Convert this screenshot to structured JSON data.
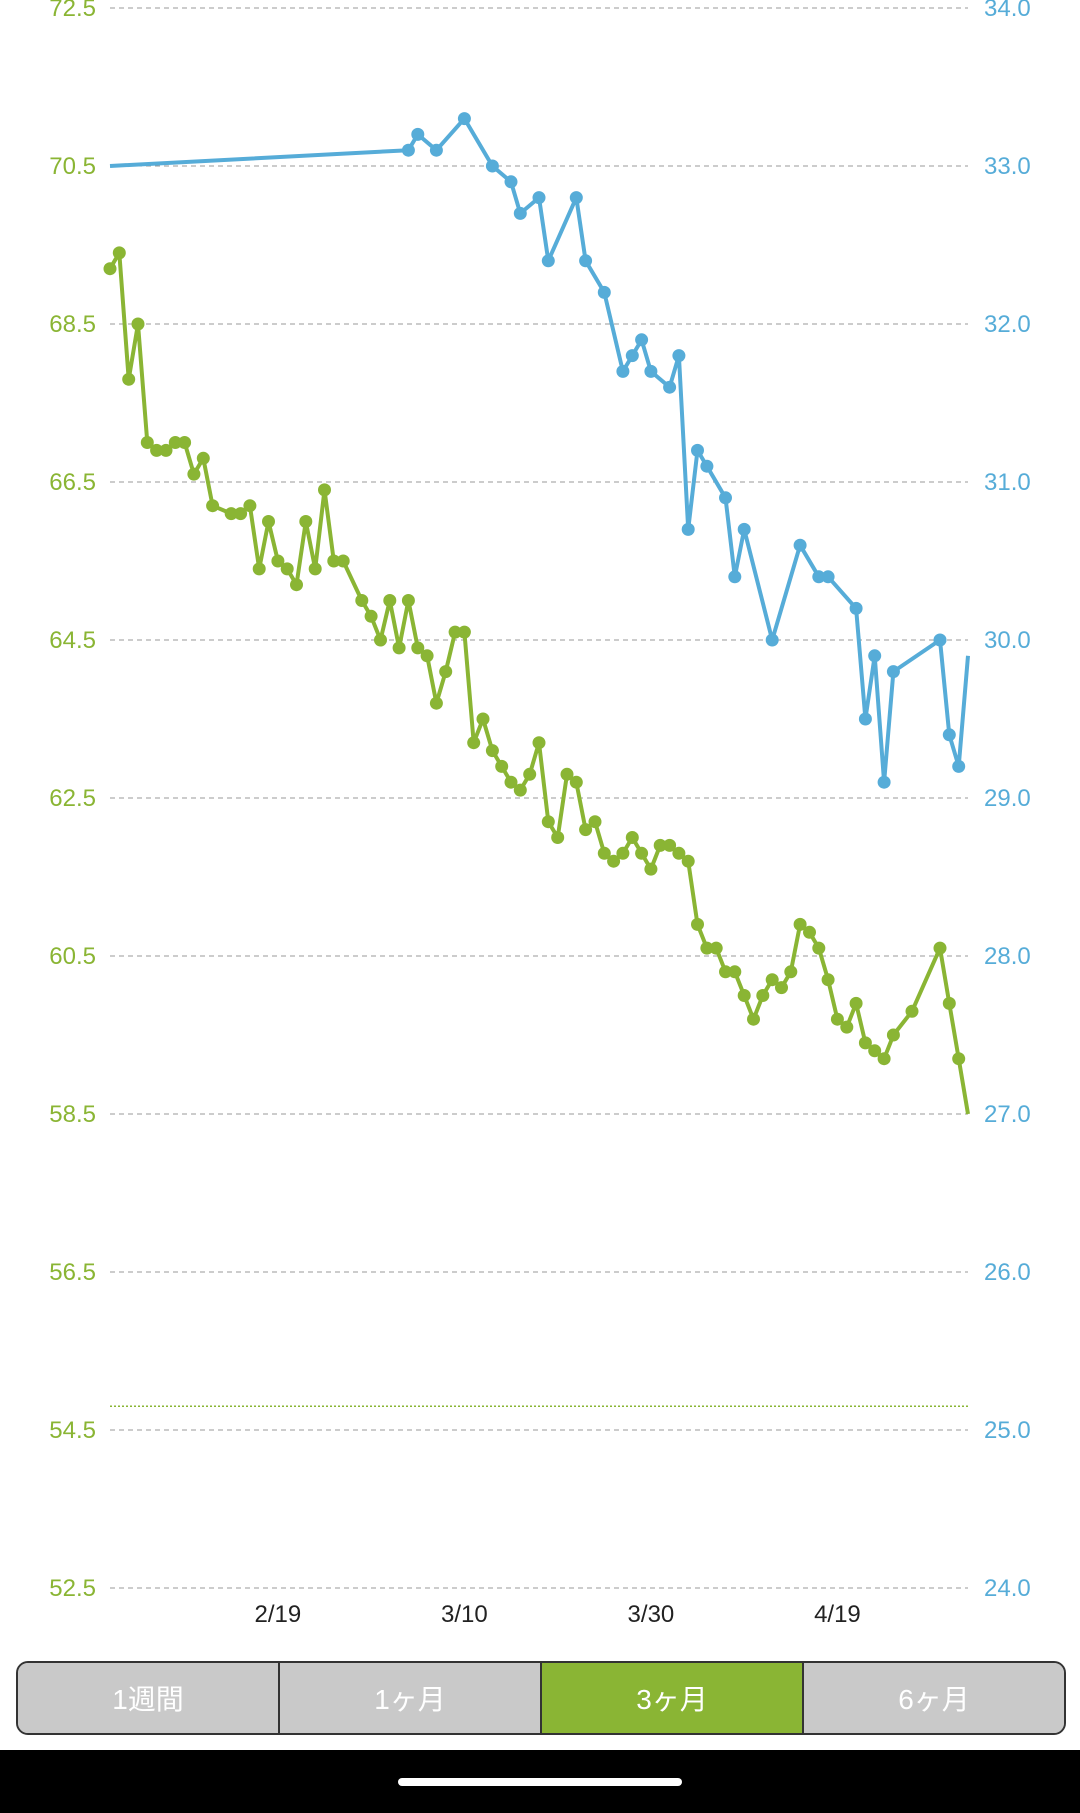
{
  "chart_data": {
    "type": "line",
    "title": "",
    "left_axis": {
      "ticks": [
        "72.5",
        "70.5",
        "68.5",
        "66.5",
        "64.5",
        "62.5",
        "60.5",
        "58.5",
        "56.5",
        "54.5",
        "52.5"
      ],
      "range": [
        52.5,
        72.5
      ],
      "color": "#8ab534"
    },
    "right_axis": {
      "ticks": [
        "34.0",
        "33.0",
        "32.0",
        "31.0",
        "30.0",
        "29.0",
        "28.0",
        "27.0",
        "26.0",
        "25.0",
        "24.0"
      ],
      "range": [
        24.0,
        34.0
      ],
      "color": "#56acd8"
    },
    "x_axis": {
      "ticks": [
        "2/19",
        "3/10",
        "3/30",
        "4/19"
      ],
      "tick_days": [
        27,
        47,
        67,
        87
      ]
    },
    "grid": true,
    "target_line": {
      "value": 54.8,
      "axis": "left",
      "color": "#8ab534"
    },
    "series": [
      {
        "axis": "left",
        "color": "#8ab534",
        "points": [
          [
            9,
            69.2
          ],
          [
            10,
            69.4
          ],
          [
            11,
            67.8
          ],
          [
            12,
            68.5
          ],
          [
            13,
            67.0
          ],
          [
            14,
            66.9
          ],
          [
            15,
            66.9
          ],
          [
            16,
            67.0
          ],
          [
            17,
            67.0
          ],
          [
            18,
            66.6
          ],
          [
            19,
            66.8
          ],
          [
            20,
            66.2
          ],
          [
            22,
            66.1
          ],
          [
            23,
            66.1
          ],
          [
            24,
            66.2
          ],
          [
            25,
            65.4
          ],
          [
            26,
            66.0
          ],
          [
            27,
            65.5
          ],
          [
            28,
            65.4
          ],
          [
            29,
            65.2
          ],
          [
            30,
            66.0
          ],
          [
            31,
            65.4
          ],
          [
            32,
            66.4
          ],
          [
            33,
            65.5
          ],
          [
            34,
            65.5
          ],
          [
            36,
            65.0
          ],
          [
            37,
            64.8
          ],
          [
            38,
            64.5
          ],
          [
            39,
            65.0
          ],
          [
            40,
            64.4
          ],
          [
            41,
            65.0
          ],
          [
            42,
            64.4
          ],
          [
            43,
            64.3
          ],
          [
            44,
            63.7
          ],
          [
            45,
            64.1
          ],
          [
            46,
            64.6
          ],
          [
            47,
            64.6
          ],
          [
            48,
            63.2
          ],
          [
            49,
            63.5
          ],
          [
            50,
            63.1
          ],
          [
            51,
            62.9
          ],
          [
            52,
            62.7
          ],
          [
            53,
            62.6
          ],
          [
            54,
            62.8
          ],
          [
            55,
            63.2
          ],
          [
            56,
            62.2
          ],
          [
            57,
            62.0
          ],
          [
            58,
            62.8
          ],
          [
            59,
            62.7
          ],
          [
            60,
            62.1
          ],
          [
            61,
            62.2
          ],
          [
            62,
            61.8
          ],
          [
            63,
            61.7
          ],
          [
            64,
            61.8
          ],
          [
            65,
            62.0
          ],
          [
            66,
            61.8
          ],
          [
            67,
            61.6
          ],
          [
            68,
            61.9
          ],
          [
            69,
            61.9
          ],
          [
            70,
            61.8
          ],
          [
            71,
            61.7
          ],
          [
            72,
            60.9
          ],
          [
            73,
            60.6
          ],
          [
            74,
            60.6
          ],
          [
            75,
            60.3
          ],
          [
            76,
            60.3
          ],
          [
            77,
            60.0
          ],
          [
            78,
            59.7
          ],
          [
            79,
            60.0
          ],
          [
            80,
            60.2
          ],
          [
            81,
            60.1
          ],
          [
            82,
            60.3
          ],
          [
            83,
            60.9
          ],
          [
            84,
            60.8
          ],
          [
            85,
            60.6
          ],
          [
            86,
            60.2
          ],
          [
            87,
            59.7
          ],
          [
            88,
            59.6
          ],
          [
            89,
            59.9
          ],
          [
            90,
            59.4
          ],
          [
            91,
            59.3
          ],
          [
            92,
            59.2
          ],
          [
            93,
            59.5
          ],
          [
            95,
            59.8
          ],
          [
            98,
            60.6
          ],
          [
            99,
            59.9
          ],
          [
            100,
            59.2
          ],
          [
            101,
            58.5
          ]
        ]
      },
      {
        "axis": "right",
        "color": "#56acd8",
        "points": [
          [
            9,
            33.0
          ],
          [
            41,
            33.1
          ],
          [
            42,
            33.2
          ],
          [
            44,
            33.1
          ],
          [
            47,
            33.3
          ],
          [
            50,
            33.0
          ],
          [
            52,
            32.9
          ],
          [
            53,
            32.7
          ],
          [
            55,
            32.8
          ],
          [
            56,
            32.4
          ],
          [
            59,
            32.8
          ],
          [
            60,
            32.4
          ],
          [
            62,
            32.2
          ],
          [
            64,
            31.7
          ],
          [
            65,
            31.8
          ],
          [
            66,
            31.9
          ],
          [
            67,
            31.7
          ],
          [
            69,
            31.6
          ],
          [
            70,
            31.8
          ],
          [
            71,
            30.7
          ],
          [
            72,
            31.2
          ],
          [
            73,
            31.1
          ],
          [
            75,
            30.9
          ],
          [
            76,
            30.4
          ],
          [
            77,
            30.7
          ],
          [
            80,
            30.0
          ],
          [
            83,
            30.6
          ],
          [
            85,
            30.4
          ],
          [
            86,
            30.4
          ],
          [
            89,
            30.2
          ],
          [
            90,
            29.5
          ],
          [
            91,
            29.9
          ],
          [
            92,
            29.1
          ],
          [
            93,
            29.8
          ],
          [
            98,
            30.0
          ],
          [
            99,
            29.4
          ],
          [
            100,
            29.2
          ],
          [
            101,
            29.9
          ]
        ]
      }
    ]
  },
  "period_tabs": {
    "items": [
      {
        "label": "1週間"
      },
      {
        "label": "1ヶ月"
      },
      {
        "label": "3ヶ月"
      },
      {
        "label": "6ヶ月"
      }
    ],
    "selected_label": "3ヶ月"
  }
}
